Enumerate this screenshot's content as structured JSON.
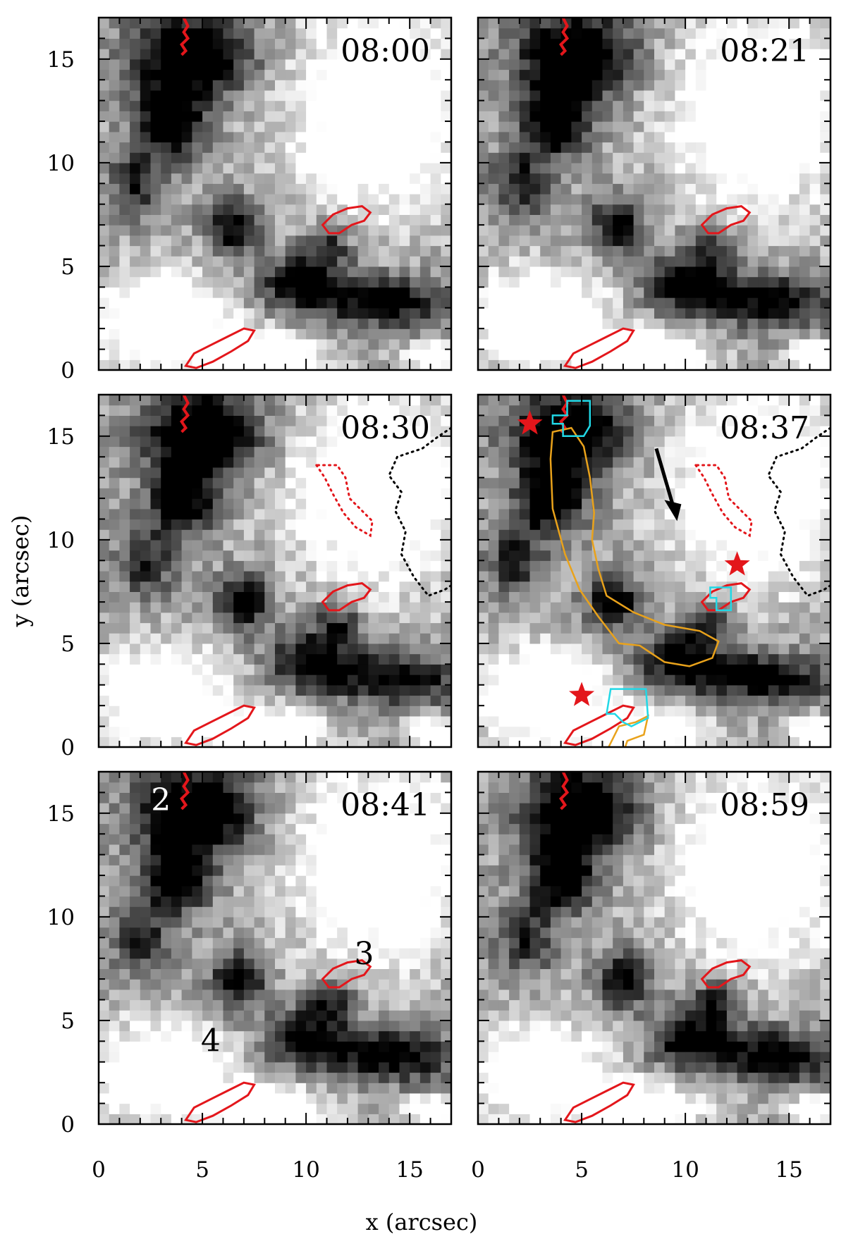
{
  "figure": {
    "xlabel": "x  (arcsec)",
    "ylabel": "y  (arcsec)",
    "x_ticks": [
      "0",
      "5",
      "10",
      "15"
    ],
    "y_ticks": [
      "0",
      "5",
      "10",
      "15"
    ],
    "panels": [
      {
        "time": "08:00",
        "labels": []
      },
      {
        "time": "08:21",
        "labels": []
      },
      {
        "time": "08:30",
        "labels": []
      },
      {
        "time": "08:37",
        "labels": []
      },
      {
        "time": "08:41",
        "labels": [
          "2",
          "3",
          "4"
        ]
      },
      {
        "time": "08:59",
        "labels": []
      }
    ],
    "colors": {
      "contour_red": "#e3161b",
      "contour_cyan": "#21d8e6",
      "contour_orange": "#e9a21b",
      "contour_black": "#000000",
      "star": "#e3161b"
    }
  },
  "chart_data": {
    "type": "heatmap",
    "title": "",
    "xlabel": "x  (arcsec)",
    "ylabel": "y  (arcsec)",
    "xlim": [
      0,
      17
    ],
    "ylim": [
      0,
      17
    ],
    "x_ticks": [
      0,
      5,
      10,
      15
    ],
    "y_ticks": [
      0,
      5,
      10,
      15
    ],
    "panels": [
      "08:00",
      "08:21",
      "08:30",
      "08:37",
      "08:41",
      "08:59"
    ],
    "stars_0837": [
      {
        "x": 2.5,
        "y": 15.6
      },
      {
        "x": 12.5,
        "y": 8.8
      },
      {
        "x": 5.0,
        "y": 2.5
      }
    ],
    "region_labels_0841": [
      {
        "label": "2",
        "x": 3.0,
        "y": 15.6
      },
      {
        "label": "3",
        "x": 12.8,
        "y": 8.2
      },
      {
        "label": "4",
        "x": 5.4,
        "y": 4.0
      }
    ]
  }
}
